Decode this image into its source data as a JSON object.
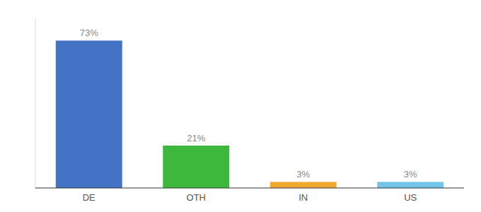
{
  "chart_data": {
    "type": "bar",
    "categories": [
      "DE",
      "OTH",
      "IN",
      "US"
    ],
    "values": [
      73,
      21,
      3,
      3
    ],
    "value_labels": [
      "73%",
      "21%",
      "3%",
      "3%"
    ],
    "colors": [
      "#4472c4",
      "#3db83d",
      "#f0a830",
      "#72c4e8"
    ],
    "ylim": [
      0,
      84
    ],
    "data_labels": true,
    "tick_labels": "x"
  }
}
